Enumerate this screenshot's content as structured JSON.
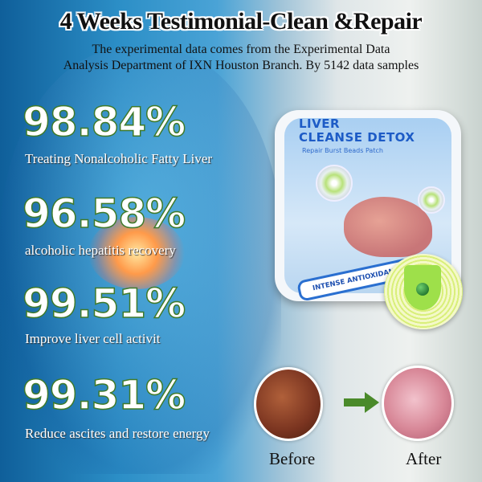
{
  "header": {
    "title": "4 Weeks Testimonial-Clean &Repair",
    "subtitle_line1": "The experimental data comes from the Experimental Data",
    "subtitle_line2": "Analysis Department of  IXN Houston Branch. By 5142 data samples"
  },
  "stats": [
    {
      "value": "98.84%",
      "label": "Treating Nonalcoholic Fatty Liver"
    },
    {
      "value": "96.58%",
      "label": "alcoholic hepatitis recovery"
    },
    {
      "value": "99.51%",
      "label": "Improve liver cell activit"
    },
    {
      "value": "99.31%",
      "label": "Reduce ascites and restore energy"
    }
  ],
  "product": {
    "name_line1": "LIVER",
    "name_line2": "CLEANSE DETOX",
    "tagline": "Repair Burst Beads Patch",
    "ribbon": "INTENSE ANTIOXIDANT"
  },
  "comparison": {
    "before": "Before",
    "after": "After",
    "arrow_color": "#4a8a2a"
  },
  "colors": {
    "stat_stroke": "#3f7a2a",
    "brand_blue": "#1d5bc6"
  }
}
